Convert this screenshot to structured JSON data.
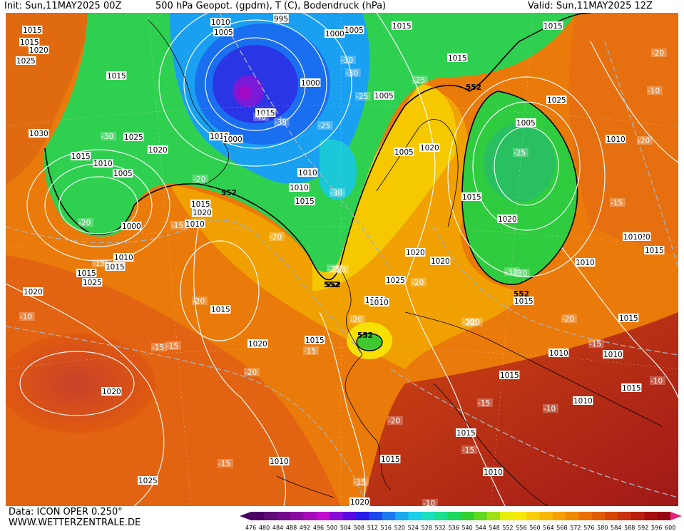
{
  "header": {
    "init": "Init: Sun,11MAY2025 00Z",
    "title": "500 hPa Geopot. (gpdm), T (C), Bodendruck (hPa)",
    "valid": "Valid: Sun,11MAY2025 12Z"
  },
  "footer": {
    "data_source": "Data: ICON OPER 0.250°",
    "website": "WWW.WETTERZENTRALE.DE"
  },
  "scale": {
    "ticks": [
      "476",
      "480",
      "484",
      "488",
      "492",
      "496",
      "500",
      "504",
      "508",
      "512",
      "516",
      "520",
      "524",
      "528",
      "532",
      "536",
      "540",
      "544",
      "548",
      "552",
      "556",
      "560",
      "564",
      "568",
      "572",
      "576",
      "580",
      "584",
      "588",
      "592",
      "596",
      "600"
    ],
    "colors": [
      "#4b0066",
      "#5e0a7a",
      "#730a8c",
      "#8a0aa0",
      "#a50ab8",
      "#c00ad0",
      "#8a0ad8",
      "#5a0ae0",
      "#2a1ae8",
      "#1a46ee",
      "#1a78f0",
      "#1aa8f0",
      "#1ad0e8",
      "#1ae0c0",
      "#1ae090",
      "#1ad860",
      "#30d030",
      "#60d820",
      "#a0e010",
      "#e8f000",
      "#f8e800",
      "#f8d000",
      "#f8b800",
      "#f5a000",
      "#f08a00",
      "#ea7000",
      "#e05a00",
      "#d44400",
      "#c83010",
      "#b82010",
      "#a81010",
      "#980810"
    ]
  },
  "map": {
    "pressure_labels": [
      "1015",
      "1020",
      "1025",
      "1015",
      "1030",
      "1025",
      "1020",
      "1015",
      "1010",
      "1005",
      "1000",
      "1010",
      "1015",
      "1020",
      "1010",
      "1005",
      "995",
      "1000",
      "1005",
      "1000",
      "1005",
      "1015",
      "1010",
      "1000",
      "1005",
      "1010",
      "1015",
      "1020",
      "1025",
      "1005",
      "1010",
      "1015",
      "1020",
      "1020",
      "1015",
      "1010",
      "1015",
      "1025",
      "1030",
      "1020",
      "1015",
      "1020",
      "1015",
      "1020",
      "1025",
      "1010",
      "1015",
      "1020",
      "1015",
      "1010",
      "1015",
      "1010",
      "1010",
      "1015",
      "1010",
      "1010",
      "1015",
      "1015",
      "1015",
      "1010",
      "1015",
      "1020",
      "1010",
      "1015",
      "1020",
      "1015",
      "1025",
      "1015",
      "1010",
      "1015"
    ],
    "temperature_labels": [
      "-30",
      "-30",
      "-30",
      "-25",
      "-25",
      "-30",
      "-35",
      "-40",
      "-20",
      "-20",
      "-20",
      "-15",
      "-15",
      "-20",
      "-15",
      "-20",
      "-15",
      "-20",
      "-25",
      "-30",
      "-20",
      "-20",
      "-20",
      "-15",
      "-10",
      "-10",
      "-15",
      "-10",
      "-20",
      "-15",
      "-15",
      "-20",
      "-25",
      "-30",
      "-20",
      "-15",
      "-10",
      "-25",
      "-20",
      "-15",
      "-15",
      "-20",
      "-10"
    ],
    "geopot_labels": [
      "552",
      "552",
      "552",
      "552",
      "552",
      "552"
    ]
  }
}
